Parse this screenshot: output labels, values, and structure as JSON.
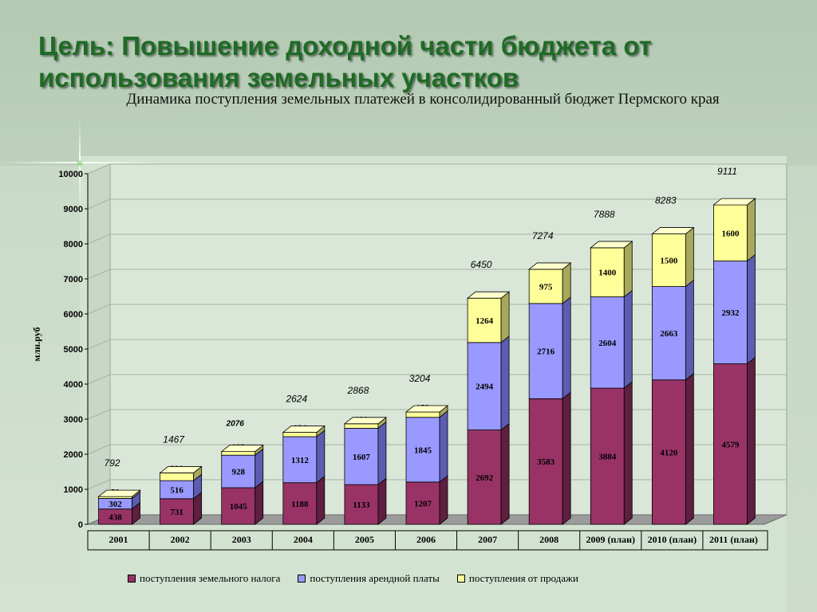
{
  "slide": {
    "title": "Цель: Повышение доходной части бюджета от использования земельных участков"
  },
  "chart_data": {
    "type": "bar",
    "stacked": true,
    "title": "Динамика поступления земельных платежей в консолидированный бюджет Пермского края",
    "ylabel": "млн.руб",
    "xlabel": "",
    "ylim": [
      0,
      10000
    ],
    "yticks": [
      0,
      1000,
      2000,
      3000,
      4000,
      5000,
      6000,
      7000,
      8000,
      9000,
      10000
    ],
    "grid": true,
    "legend_position": "bottom",
    "categories": [
      "2001",
      "2002",
      "2003",
      "2004",
      "2005",
      "2006",
      "2007",
      "2008",
      "2009 (план)",
      "2010 (план)",
      "2011 (план)"
    ],
    "series": [
      {
        "name": "поступления земельного налога",
        "color": "#993366",
        "side": "#5e1f40",
        "top": "#b8527f",
        "values": [
          438,
          731,
          1045,
          1188,
          1133,
          1207,
          2692,
          3583,
          3884,
          4120,
          4579
        ]
      },
      {
        "name": "поступления арендной платы",
        "color": "#9999ff",
        "side": "#5c5cb0",
        "top": "#b8b8ff",
        "values": [
          302,
          516,
          928,
          1312,
          1607,
          1845,
          2494,
          2716,
          2604,
          2663,
          2932
        ]
      },
      {
        "name": "поступления от продажи",
        "color": "#ffff99",
        "side": "#a8a85c",
        "top": "#ffffcc",
        "values": [
          52,
          220,
          103,
          124,
          128,
          152,
          1264,
          975,
          1400,
          1500,
          1600
        ]
      }
    ],
    "totals": [
      "792",
      "1467",
      "2076",
      "2624",
      "2868",
      "3204",
      "6450",
      "7274",
      "7888",
      "8283",
      "9111"
    ]
  }
}
